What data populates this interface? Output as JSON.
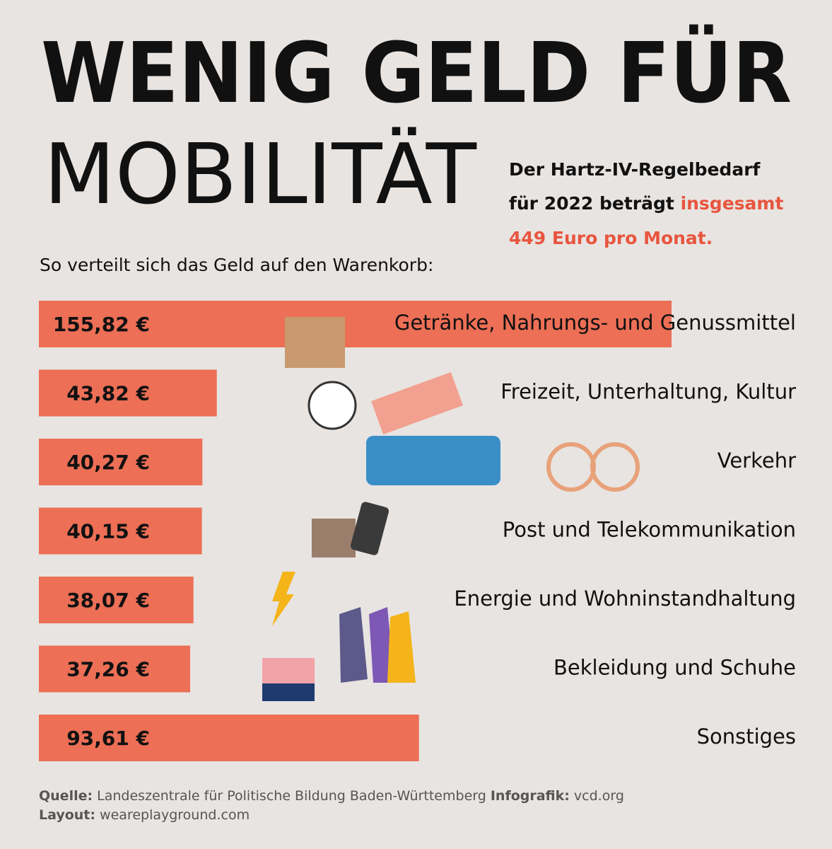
{
  "chart_data": {
    "type": "hbar",
    "title": [
      "WENIG GELD FÜR",
      "MOBILITÄT"
    ],
    "info": {
      "lines": [
        "Der Hartz-IV-Regelbedarf",
        "für 2022 beträgt"
      ],
      "highlight": [
        "insgesamt",
        "449 Euro pro Monat."
      ]
    },
    "subtitle": "So verteilt sich das Geld auf den Warenkorb:",
    "categories": [
      "Getränke, Nahrungs- und Genussmittel",
      "Freizeit, Unterhaltung, Kultur",
      "Verkehr",
      "Post und Telekommunikation",
      "Energie und Wohninstandhaltung",
      "Bekleidung und Schuhe",
      "Sonstiges"
    ],
    "values": [
      155.82,
      43.82,
      40.27,
      40.15,
      38.07,
      37.26,
      93.61
    ],
    "value_labels": [
      "155,82 €",
      "43,82 €",
      "40,27 €",
      "40,15 €",
      "38,07 €",
      "37,26 €",
      "93,61 €"
    ],
    "color": "#ec6f56",
    "footer": [
      {
        "label": "Quelle:",
        "text": "Landeszentrale für Politische Bildung Baden-Württemberg"
      },
      {
        "label": "Infografik:",
        "text": "vcd.org"
      },
      {
        "label": "Layout:",
        "text": "weareplayground.com"
      }
    ]
  }
}
